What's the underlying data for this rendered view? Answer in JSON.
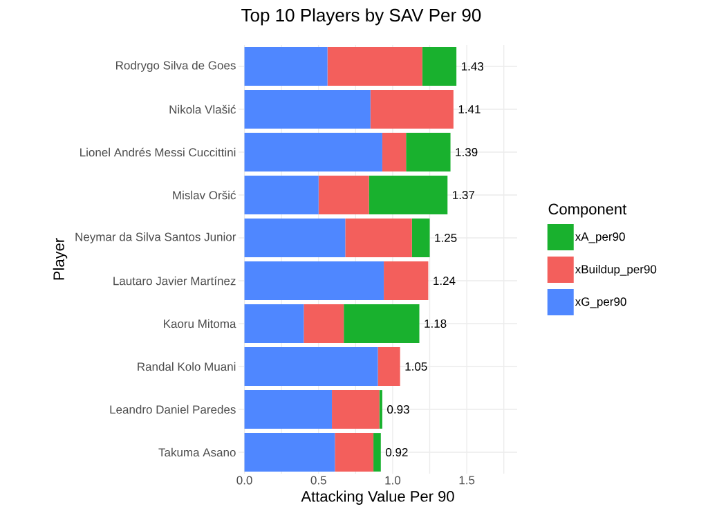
{
  "chart_data": {
    "type": "bar",
    "orientation": "horizontal",
    "stacked": true,
    "title": "Top 10 Players by SAV Per 90",
    "xlabel": "Attacking Value Per 90",
    "ylabel": "Player",
    "legend_title": "Component",
    "categories": [
      "Rodrygo Silva de Goes",
      "Nikola Vlašić",
      "Lionel Andrés Messi Cuccittini",
      "Mislav Oršić",
      "Neymar da Silva Santos Junior",
      "Lautaro Javier Martínez",
      "Kaoru Mitoma",
      "Randal Kolo Muani",
      "Leandro Daniel Paredes",
      "Takuma Asano"
    ],
    "series": [
      {
        "name": "xG_per90",
        "color": "#4f87ff",
        "values": [
          0.56,
          0.85,
          0.93,
          0.5,
          0.68,
          0.94,
          0.4,
          0.9,
          0.59,
          0.61
        ]
      },
      {
        "name": "xBuildup_per90",
        "color": "#f35f5c",
        "values": [
          0.64,
          0.56,
          0.16,
          0.34,
          0.45,
          0.3,
          0.27,
          0.15,
          0.32,
          0.26
        ]
      },
      {
        "name": "xA_per90",
        "color": "#19b12e",
        "values": [
          0.23,
          0,
          0.3,
          0.53,
          0.12,
          0,
          0.51,
          0,
          0.02,
          0.05
        ]
      }
    ],
    "totals": [
      "1.43",
      "1.41",
      "1.39",
      "1.37",
      "1.25",
      "1.24",
      "1.18",
      "1.05",
      "0.93",
      "0.92"
    ],
    "xlim": [
      -0.04,
      1.84
    ],
    "xticks": [
      {
        "value": 0,
        "label": "0.0"
      },
      {
        "value": 0.25,
        "label": null
      },
      0.5,
      {
        "value": 0.75,
        "label": null
      },
      {
        "value": 1,
        "label": "1.0"
      },
      {
        "value": 1.25,
        "label": null
      },
      1.5,
      {
        "value": 1.75,
        "label": null
      }
    ],
    "grid": true,
    "legend": "right"
  }
}
